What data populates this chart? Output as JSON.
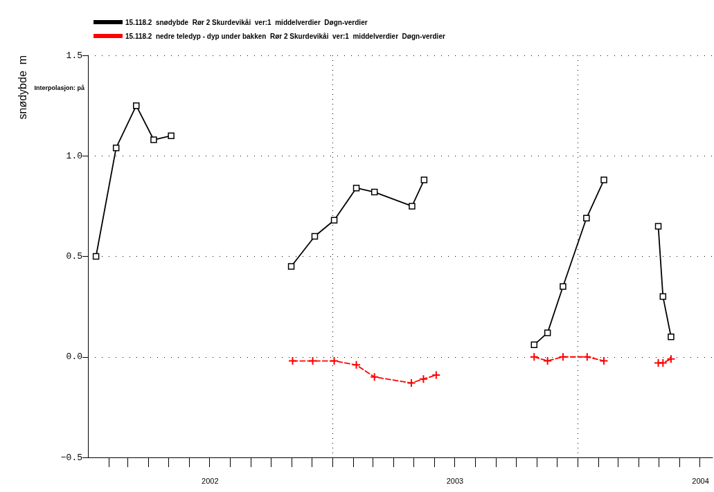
{
  "chart_data": {
    "type": "line",
    "ylabel": "snødybde  m",
    "annotations": [
      "Interpolasjon: på"
    ],
    "xlim": [
      "2002-01-01",
      "2004-07-20"
    ],
    "ylim": [
      -0.5,
      1.5
    ],
    "yticks": [
      -0.5,
      {
        "value": 0,
        "label": "0.0"
      },
      0.5,
      {
        "value": 1,
        "label": "1.0"
      },
      1.5
    ],
    "xticks": [
      {
        "value": "2002-02-01",
        "label": null
      },
      {
        "value": "2002-03-01",
        "label": null
      },
      {
        "value": "2002-04-01",
        "label": null
      },
      {
        "value": "2002-05-01",
        "label": null
      },
      {
        "value": "2002-06-01",
        "label": null
      },
      {
        "value": "2002-07-01",
        "label": null
      },
      {
        "value": "2002-07-02",
        "label": "2002"
      },
      {
        "value": "2002-08-01",
        "label": null
      },
      {
        "value": "2002-09-01",
        "label": null
      },
      {
        "value": "2002-10-01",
        "label": null
      },
      {
        "value": "2002-11-01",
        "label": null
      },
      {
        "value": "2002-12-01",
        "label": null
      },
      {
        "value": "2003-01-01",
        "label": null
      },
      {
        "value": "2003-02-01",
        "label": null
      },
      {
        "value": "2003-03-01",
        "label": null
      },
      {
        "value": "2003-04-01",
        "label": null
      },
      {
        "value": "2003-05-01",
        "label": null
      },
      {
        "value": "2003-06-01",
        "label": null
      },
      {
        "value": "2003-07-01",
        "label": null
      },
      {
        "value": "2003-07-02",
        "label": "2003"
      },
      {
        "value": "2003-08-01",
        "label": null
      },
      {
        "value": "2003-09-01",
        "label": null
      },
      {
        "value": "2003-10-01",
        "label": null
      },
      {
        "value": "2003-11-01",
        "label": null
      },
      {
        "value": "2003-12-01",
        "label": null
      },
      {
        "value": "2004-01-01",
        "label": null
      },
      {
        "value": "2004-02-01",
        "label": null
      },
      {
        "value": "2004-03-01",
        "label": null
      },
      {
        "value": "2004-04-01",
        "label": null
      },
      {
        "value": "2004-05-01",
        "label": null
      },
      {
        "value": "2004-06-01",
        "label": null
      },
      {
        "value": "2004-07-01",
        "label": null
      },
      {
        "value": "2004-07-02",
        "label": "2004"
      }
    ],
    "grid": true,
    "legend": "top left",
    "series": [
      {
        "name": "15.118.2  snødybde  Rør 2 Skurdevikåi  ver:1  middelverdier  Døgn-verdier",
        "color": "#000000",
        "marker": "square",
        "line_style": "solid",
        "x": [
          "2002-01-13",
          "2002-02-12",
          "2002-03-14",
          "2002-04-09",
          "2002-05-05",
          "2002-07-01",
          "2002-10-31",
          "2002-12-05",
          "2003-01-03",
          "2003-02-05",
          "2003-03-04",
          "2003-04-29",
          "2003-05-17",
          "2003-08-01",
          "2003-10-28",
          "2003-11-17",
          "2003-12-10",
          "2004-01-14",
          "2004-02-09",
          "2004-03-20",
          "2004-04-30",
          "2004-05-07",
          "2004-05-19"
        ],
        "values": [
          0.5,
          1.04,
          1.25,
          1.08,
          1.1,
          null,
          0.45,
          0.6,
          0.68,
          0.84,
          0.82,
          0.75,
          0.88,
          null,
          0.06,
          0.12,
          0.35,
          0.69,
          0.88,
          null,
          0.65,
          0.3,
          0.1
        ]
      },
      {
        "name": "15.118.2  nedre teledyp - dyp under bakken  Rør 2 Skurdevikåi  ver:1  middelverdier  Døgn-verdier",
        "color": "#ff0000",
        "marker": "cross",
        "line_style": "dashed",
        "x": [
          "2002-11-02",
          "2002-12-02",
          "2003-01-03",
          "2003-02-05",
          "2003-03-04",
          "2003-04-28",
          "2003-05-16",
          "2003-06-04",
          "2003-08-01",
          "2003-10-28",
          "2003-11-17",
          "2003-12-10",
          "2004-01-15",
          "2004-02-09",
          "2004-03-20",
          "2004-04-30",
          "2004-05-07",
          "2004-05-19"
        ],
        "values": [
          -0.02,
          -0.02,
          -0.02,
          -0.04,
          -0.1,
          -0.13,
          -0.11,
          -0.09,
          null,
          0,
          -0.02,
          0,
          0,
          -0.02,
          null,
          -0.03,
          -0.03,
          -0.01
        ]
      }
    ]
  }
}
